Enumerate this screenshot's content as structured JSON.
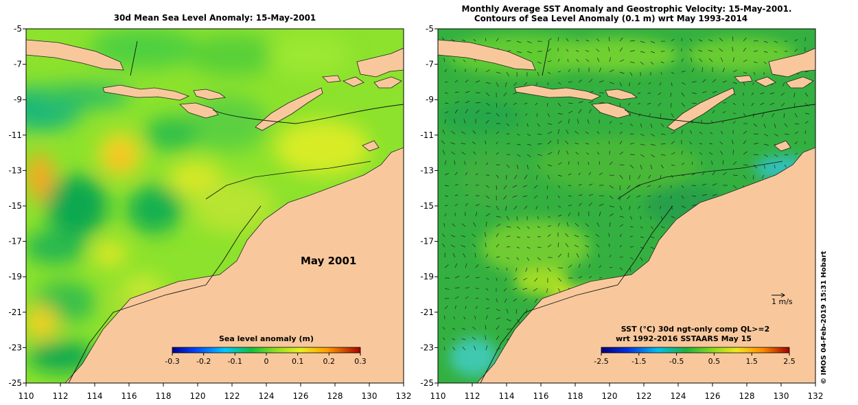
{
  "left_panel": {
    "title": "30d Mean Sea Level Anomaly: 15-May-2001",
    "month_label": "May 2001",
    "colorbar": {
      "title": "Sea level anomaly (m)",
      "ticks": [
        "-0.3",
        "-0.2",
        "-0.1",
        "0",
        "0.1",
        "0.2",
        "0.3"
      ]
    }
  },
  "right_panel": {
    "title_line1": "Monthly Average SST Anomaly  and Geostrophic Velocity: 15-May-2001.",
    "title_line2": "Contours of Sea Level Anomaly (0.1 m) wrt May 1993-2014",
    "scale_label": "1 m/s",
    "colorbar": {
      "title_line1": "SST (°C) 30d ngt-only comp QL>=2",
      "title_line2": "wrt 1992-2016 SSTAARS May 15",
      "ticks": [
        "-2.5",
        "-1.5",
        "-0.5",
        "0.5",
        "1.5",
        "2.5"
      ]
    }
  },
  "axes": {
    "lon_ticks": [
      "110",
      "112",
      "114",
      "116",
      "118",
      "120",
      "122",
      "124",
      "126",
      "128",
      "130",
      "132"
    ],
    "lat_ticks": [
      "-5",
      "-7",
      "-9",
      "-11",
      "-13",
      "-15",
      "-17",
      "-19",
      "-21",
      "-23",
      "-25"
    ],
    "lon_range": [
      110,
      132
    ],
    "lat_range": [
      -25,
      -5
    ]
  },
  "credit": "© IMOS 04-Feb-2019 15:31 Hobart",
  "colors": {
    "land": "#F8C89C",
    "ocean_base": "#8EE62A",
    "sst_base": "#3CB43C"
  }
}
